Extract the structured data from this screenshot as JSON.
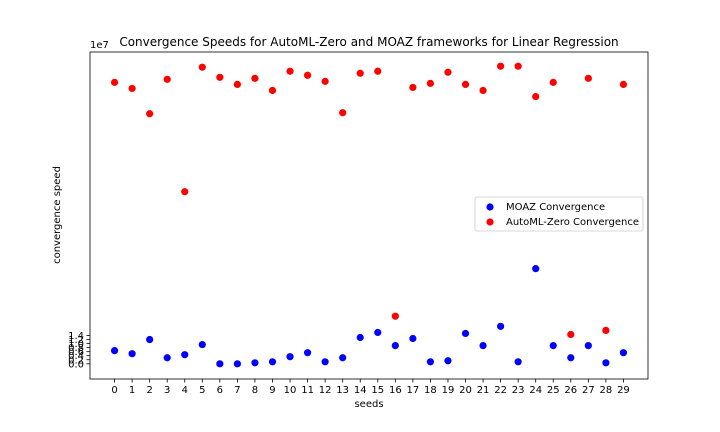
{
  "chart_data": {
    "type": "scatter",
    "title": "Convergence Speeds for AutoML-Zero and MOAZ frameworks for Linear Regression",
    "xlabel": "seeds",
    "ylabel": "convergence speed",
    "y_scale_label": "1e7",
    "x": [
      0,
      1,
      2,
      3,
      4,
      5,
      6,
      7,
      8,
      9,
      10,
      11,
      12,
      13,
      14,
      15,
      16,
      17,
      18,
      19,
      20,
      21,
      22,
      23,
      24,
      25,
      26,
      27,
      28,
      29
    ],
    "xlim": [
      -1.4,
      30.4
    ],
    "ylim": [
      -0.75,
      15.4
    ],
    "y_ticks": [
      0.0,
      0.2,
      0.4,
      0.6,
      0.8,
      1.0,
      1.2,
      1.4
    ],
    "y_tick_labels": [
      "0.0",
      "0.2",
      "0.4",
      "0.6",
      "0.8",
      "1.0",
      "1.2",
      "1.4"
    ],
    "grid": false,
    "legend_position": "center-right",
    "series": [
      {
        "name": "MOAZ Convergence",
        "color": "#0000ff",
        "values": [
          0.65,
          0.5,
          1.2,
          0.3,
          0.45,
          0.95,
          0.0,
          0.0,
          0.05,
          0.1,
          0.35,
          0.55,
          0.1,
          0.3,
          1.3,
          1.55,
          0.9,
          1.25,
          0.1,
          0.15,
          1.5,
          0.9,
          1.85,
          0.1,
          4.7,
          0.9,
          0.3,
          0.9,
          0.05,
          0.55
        ]
      },
      {
        "name": "AutoML-Zero Convergence",
        "color": "#ff0000",
        "values": [
          13.9,
          13.6,
          12.35,
          14.05,
          8.5,
          14.65,
          14.15,
          13.8,
          14.1,
          13.5,
          14.45,
          14.25,
          13.95,
          12.4,
          14.35,
          14.45,
          2.35,
          13.65,
          13.85,
          14.4,
          13.8,
          13.5,
          14.7,
          14.7,
          13.2,
          13.9,
          1.45,
          14.1,
          1.65,
          13.8
        ]
      }
    ]
  }
}
